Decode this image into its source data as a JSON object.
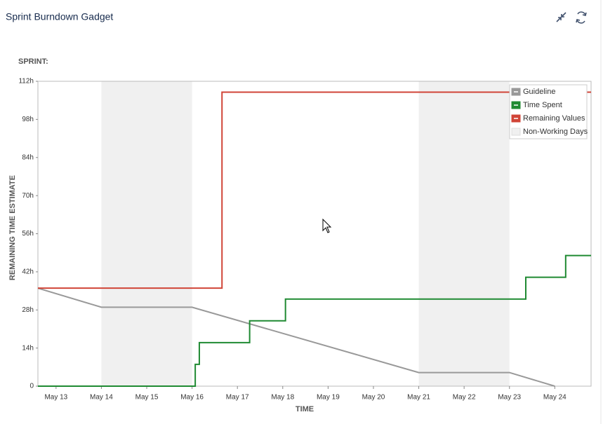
{
  "header": {
    "title": "Sprint Burndown Gadget"
  },
  "sprint_label": "SPRINT:",
  "chart_data": {
    "type": "line",
    "x_label": "TIME",
    "y_label": "REMAINING TIME ESTIMATE",
    "xlim": [
      12.6,
      24.8
    ],
    "xticks": [
      {
        "value": 13,
        "label": "May 13"
      },
      {
        "value": 14,
        "label": "May 14"
      },
      {
        "value": 15,
        "label": "May 15"
      },
      {
        "value": 16,
        "label": "May 16"
      },
      {
        "value": 17,
        "label": "May 17"
      },
      {
        "value": 18,
        "label": "May 18"
      },
      {
        "value": 19,
        "label": "May 19"
      },
      {
        "value": 20,
        "label": "May 20"
      },
      {
        "value": 21,
        "label": "May 21"
      },
      {
        "value": 22,
        "label": "May 22"
      },
      {
        "value": 23,
        "label": "May 23"
      },
      {
        "value": 24,
        "label": "May 24"
      }
    ],
    "ylim": [
      0,
      112
    ],
    "yticks": [
      0,
      {
        "value": 14,
        "label": "14h"
      },
      {
        "value": 28,
        "label": "28h"
      },
      {
        "value": 42,
        "label": "42h"
      },
      {
        "value": 56,
        "label": "56h"
      },
      {
        "value": 70,
        "label": "70h"
      },
      {
        "value": 84,
        "label": "84h"
      },
      {
        "value": 98,
        "label": "98h"
      },
      {
        "value": 112,
        "label": "112h"
      }
    ],
    "legend": "top-right",
    "series": [
      {
        "name": "Guideline",
        "color": "#999999",
        "x": [
          12.6,
          14,
          16,
          21,
          23,
          24
        ],
        "values": [
          36,
          29,
          29,
          5,
          5,
          0
        ]
      },
      {
        "name": "Time Spent",
        "color": "#1f8a32",
        "x": [
          12.6,
          16.07,
          16.07,
          16.16,
          16.16,
          17.27,
          17.27,
          18.06,
          18.06,
          23.36,
          23.36,
          24.24,
          24.24,
          24.8
        ],
        "values": [
          0,
          0,
          8,
          8,
          16,
          16,
          24,
          24,
          32,
          32,
          40,
          40,
          48,
          48
        ]
      },
      {
        "name": "Remaining Values",
        "color": "#d04437",
        "x": [
          12.6,
          16.66,
          16.66,
          24.8
        ],
        "values": [
          36,
          36,
          108,
          108
        ]
      }
    ],
    "shaded": {
      "name": "Non-Working Days",
      "color": "#f0f0f0",
      "ranges": [
        [
          14,
          16
        ],
        [
          21,
          23
        ]
      ]
    }
  }
}
